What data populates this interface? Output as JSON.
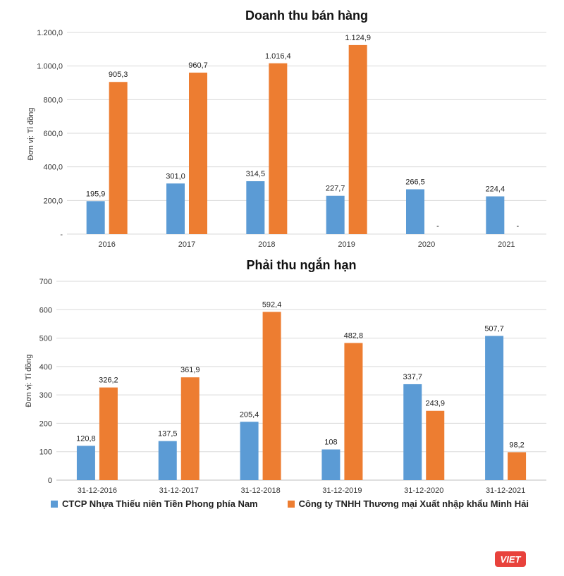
{
  "colors": {
    "series1": "#5b9bd5",
    "series2": "#ed7d31",
    "grid": "#d9d9d9",
    "logo_bg": "#e8423c"
  },
  "legend": {
    "series1": "CTCP Nhựa Thiếu niên Tiền Phong phía Nam",
    "series2": "Công ty TNHH Thương mại Xuất nhập khẩu Minh Hải"
  },
  "logo": {
    "text": "VIET"
  },
  "chart_data": [
    {
      "type": "bar",
      "title": "Doanh thu bán hàng",
      "xlabel": "",
      "ylabel": "Đơn vị: Tỉ đồng",
      "ylim": [
        0,
        1200
      ],
      "yticks": [
        0,
        200,
        400,
        600,
        800,
        1000,
        1200
      ],
      "ytick_labels": [
        "-",
        "200,0",
        "400,0",
        "600,0",
        "800,0",
        "1.000,0",
        "1.200,0"
      ],
      "categories": [
        "2016",
        "2017",
        "2018",
        "2019",
        "2020",
        "2021"
      ],
      "series": [
        {
          "name": "CTCP Nhựa Thiếu niên Tiền Phong phía Nam",
          "values": [
            195.9,
            301.0,
            314.5,
            227.7,
            266.5,
            224.4
          ],
          "labels": [
            "195,9",
            "301,0",
            "314,5",
            "227,7",
            "266,5",
            "224,4"
          ]
        },
        {
          "name": "Công ty TNHH Thương mại Xuất nhập khẩu Minh Hải",
          "values": [
            905.3,
            960.7,
            1016.4,
            1124.9,
            0,
            0
          ],
          "labels": [
            "905,3",
            "960,7",
            "1.016,4",
            "1.124,9",
            "-",
            "-"
          ]
        }
      ]
    },
    {
      "type": "bar",
      "title": "Phải thu ngắn hạn",
      "xlabel": "",
      "ylabel": "Đơn vị: Tỉ đồng",
      "ylim": [
        0,
        700
      ],
      "yticks": [
        0,
        100,
        200,
        300,
        400,
        500,
        600,
        700
      ],
      "ytick_labels": [
        "0",
        "100",
        "200",
        "300",
        "400",
        "500",
        "600",
        "700"
      ],
      "categories": [
        "31-12-2016",
        "31-12-2017",
        "31-12-2018",
        "31-12-2019",
        "31-12-2020",
        "31-12-2021"
      ],
      "series": [
        {
          "name": "CTCP Nhựa Thiếu niên Tiền Phong phía Nam",
          "values": [
            120.8,
            137.5,
            205.4,
            108,
            337.7,
            507.7
          ],
          "labels": [
            "120,8",
            "137,5",
            "205,4",
            "108",
            "337,7",
            "507,7"
          ]
        },
        {
          "name": "Công ty TNHH Thương mại Xuất nhập khẩu Minh Hải",
          "values": [
            326.2,
            361.9,
            592.4,
            482.8,
            243.9,
            98.2
          ],
          "labels": [
            "326,2",
            "361,9",
            "592,4",
            "482,8",
            "243,9",
            "98,2"
          ]
        }
      ]
    }
  ]
}
